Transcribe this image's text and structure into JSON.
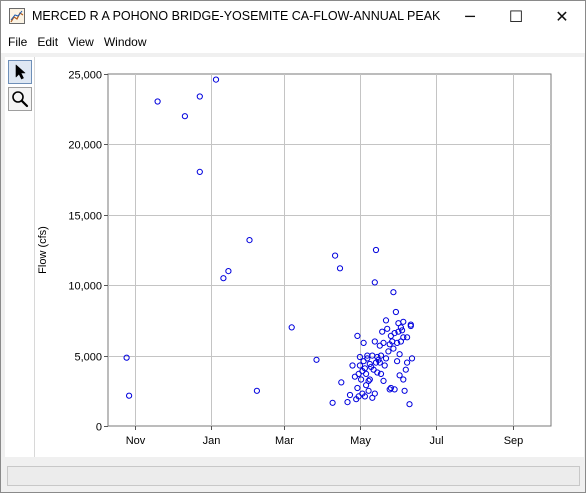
{
  "window": {
    "title": "MERCED R A POHONO BRIDGE-YOSEMITE CA-FLOW-ANNUAL PEAK",
    "minimize_glyph": "─",
    "maximize_glyph": "☐",
    "close_glyph": "✕"
  },
  "menubar": {
    "items": [
      "File",
      "Edit",
      "View",
      "Window"
    ]
  },
  "toolbar": {
    "tools": [
      "pointer-arrow-icon",
      "magnifier-zoom-icon"
    ]
  },
  "status_text": "",
  "chart_data": {
    "type": "scatter",
    "title": "",
    "xlabel": "",
    "ylabel": "Flow (cfs)",
    "x_unit": "day of water year (0 = Oct 1)",
    "x_tick_labels": [
      "Nov",
      "Jan",
      "Mar",
      "May",
      "Jul",
      "Sep"
    ],
    "x_tick_values": [
      31,
      92,
      151,
      212,
      273,
      335
    ],
    "xlim": [
      9,
      366
    ],
    "ylim": [
      0,
      25000
    ],
    "y_tick_labels": [
      "0",
      "5,000",
      "10,000",
      "15,000",
      "20,000",
      "25,000"
    ],
    "y_tick_values": [
      0,
      5000,
      10000,
      15000,
      20000,
      25000
    ],
    "grid": true,
    "marker": "open-circle",
    "marker_color": "#0000dd",
    "points": [
      [
        24,
        4850
      ],
      [
        26,
        2150
      ],
      [
        49,
        23050
      ],
      [
        71,
        22000
      ],
      [
        83,
        23400
      ],
      [
        83,
        18050
      ],
      [
        96,
        24600
      ],
      [
        102,
        10500
      ],
      [
        106,
        11000
      ],
      [
        123,
        13200
      ],
      [
        129,
        2500
      ],
      [
        157,
        7000
      ],
      [
        177,
        4700
      ],
      [
        190,
        1650
      ],
      [
        192,
        12100
      ],
      [
        196,
        11200
      ],
      [
        197,
        3100
      ],
      [
        202,
        1700
      ],
      [
        204,
        2200
      ],
      [
        206,
        4300
      ],
      [
        208,
        3500
      ],
      [
        209,
        1900
      ],
      [
        210,
        2700
      ],
      [
        210,
        6400
      ],
      [
        211,
        3700
      ],
      [
        211,
        2100
      ],
      [
        212,
        4300
      ],
      [
        212,
        4900
      ],
      [
        213,
        3300
      ],
      [
        214,
        2300
      ],
      [
        214,
        3900
      ],
      [
        215,
        4600
      ],
      [
        215,
        5900
      ],
      [
        216,
        2100
      ],
      [
        216,
        4100
      ],
      [
        217,
        3700
      ],
      [
        217,
        2900
      ],
      [
        218,
        4800
      ],
      [
        218,
        5000
      ],
      [
        219,
        3200
      ],
      [
        219,
        2500
      ],
      [
        220,
        3300
      ],
      [
        220,
        4400
      ],
      [
        221,
        4200
      ],
      [
        222,
        2000
      ],
      [
        222,
        5000
      ],
      [
        223,
        4000
      ],
      [
        224,
        2300
      ],
      [
        224,
        6000
      ],
      [
        224,
        10200
      ],
      [
        225,
        12500
      ],
      [
        225,
        4500
      ],
      [
        226,
        3800
      ],
      [
        226,
        4900
      ],
      [
        227,
        4700
      ],
      [
        228,
        4500
      ],
      [
        228,
        5700
      ],
      [
        229,
        3700
      ],
      [
        229,
        5000
      ],
      [
        230,
        6700
      ],
      [
        231,
        3200
      ],
      [
        231,
        5900
      ],
      [
        232,
        4300
      ],
      [
        233,
        7500
      ],
      [
        233,
        4800
      ],
      [
        234,
        6900
      ],
      [
        235,
        5300
      ],
      [
        236,
        5800
      ],
      [
        236,
        2600
      ],
      [
        237,
        2700
      ],
      [
        237,
        6400
      ],
      [
        238,
        6000
      ],
      [
        239,
        5500
      ],
      [
        239,
        9500
      ],
      [
        240,
        2600
      ],
      [
        240,
        6600
      ],
      [
        241,
        8100
      ],
      [
        242,
        4600
      ],
      [
        242,
        5900
      ],
      [
        243,
        6700
      ],
      [
        243,
        7300
      ],
      [
        244,
        5100
      ],
      [
        244,
        3600
      ],
      [
        245,
        6000
      ],
      [
        245,
        7000
      ],
      [
        246,
        6800
      ],
      [
        247,
        3300
      ],
      [
        247,
        6300
      ],
      [
        247,
        7400
      ],
      [
        248,
        2500
      ],
      [
        249,
        4000
      ],
      [
        250,
        4500
      ],
      [
        250,
        6300
      ],
      [
        252,
        1550
      ],
      [
        253,
        7100
      ],
      [
        253,
        7200
      ],
      [
        254,
        4800
      ]
    ]
  }
}
